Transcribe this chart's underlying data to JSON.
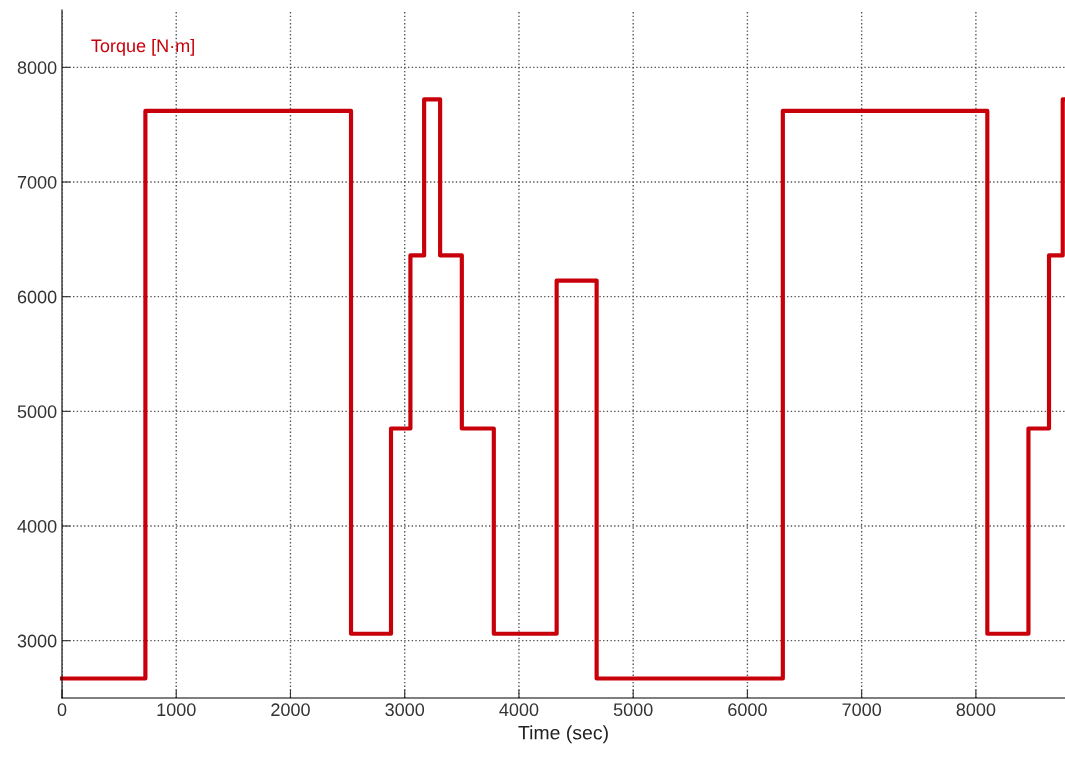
{
  "chart_data": {
    "type": "step",
    "xlabel": "Time (sec)",
    "x": [
      0,
      730,
      2530,
      2880,
      3050,
      3170,
      3310,
      3500,
      3780,
      4330,
      4680,
      6310,
      8100,
      8460,
      8640,
      8760,
      8780
    ],
    "series": [
      {
        "name": "Torque [N·m]",
        "color": "#c8000a",
        "values": [
          2670,
          7620,
          3060,
          4850,
          6360,
          7720,
          6360,
          4850,
          3060,
          6140,
          2670,
          7620,
          3060,
          4850,
          6360,
          7720,
          7720
        ]
      }
    ],
    "xlim": [
      0,
      8780
    ],
    "ylim": [
      2500,
      8500
    ],
    "xticks": [
      0,
      1000,
      2000,
      3000,
      4000,
      5000,
      6000,
      7000,
      8000
    ],
    "yticks": [
      3000,
      4000,
      5000,
      6000,
      7000,
      8000
    ],
    "grid": true,
    "legend": "top left",
    "line_style": "solid",
    "marker": "none"
  }
}
